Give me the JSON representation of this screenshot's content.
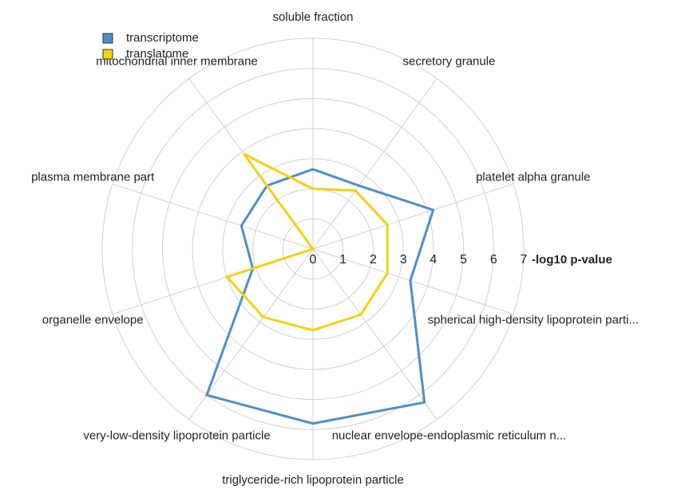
{
  "chart_data": {
    "type": "radar",
    "categories": [
      "soluble fraction",
      "secretory granule",
      "platelet alpha granule",
      "spherical high-density lipoprotein parti...",
      "nuclear envelope-endoplasmic reticulum n...",
      "triglyceride-rich lipoprotein particle",
      "very-low-density lipoprotein particle",
      "organelle envelope",
      "plasma membrane part",
      "mitochondrial inner membrane"
    ],
    "series": [
      {
        "name": "transcriptome",
        "color": "#4f8fc8",
        "values": [
          2.65,
          2.6,
          4.2,
          3.4,
          6.3,
          5.8,
          6.0,
          2.1,
          2.5,
          2.6
        ]
      },
      {
        "name": "translatome",
        "color": "#f5d011",
        "values": [
          2.0,
          2.4,
          2.6,
          2.6,
          2.7,
          2.7,
          2.8,
          3.0,
          0,
          3.9
        ]
      }
    ],
    "rlim": [
      0,
      7
    ],
    "rticks": [
      0,
      1,
      2,
      3,
      4,
      5,
      6,
      7
    ],
    "raxis_label": "-log10 p-value",
    "grid": true,
    "legend": "top-left"
  }
}
